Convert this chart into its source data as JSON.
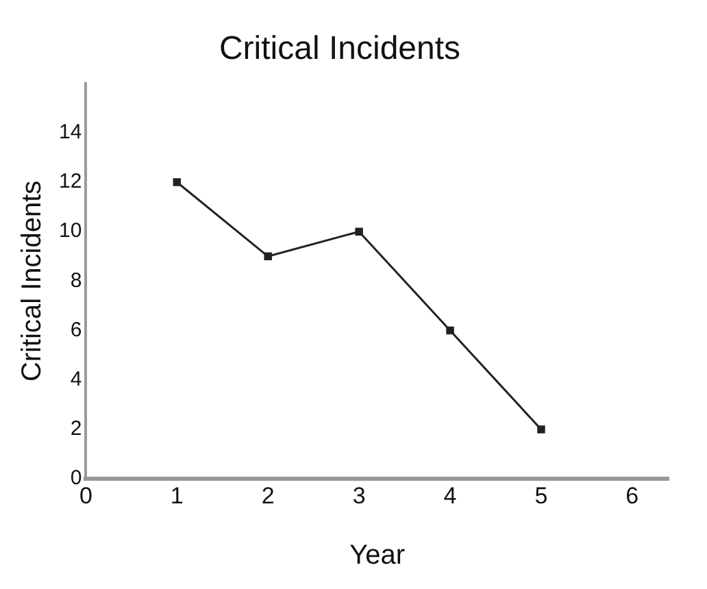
{
  "chart_data": {
    "type": "line",
    "title": "Critical Incidents",
    "xlabel": "Year",
    "ylabel": "Critical Incidents",
    "x": [
      1,
      2,
      3,
      4,
      5
    ],
    "series": [
      {
        "color": "#222222",
        "values": [
          12,
          9,
          10,
          6,
          2
        ]
      }
    ],
    "xlim": [
      0,
      6.4
    ],
    "xticks": [
      0,
      1,
      2,
      3,
      4,
      5,
      6
    ],
    "ylim": [
      0,
      16
    ],
    "yticks": [
      0,
      2,
      4,
      6,
      8,
      10,
      12,
      14
    ],
    "grid": false,
    "legend": false,
    "marker": "square",
    "line_style": "solid"
  }
}
